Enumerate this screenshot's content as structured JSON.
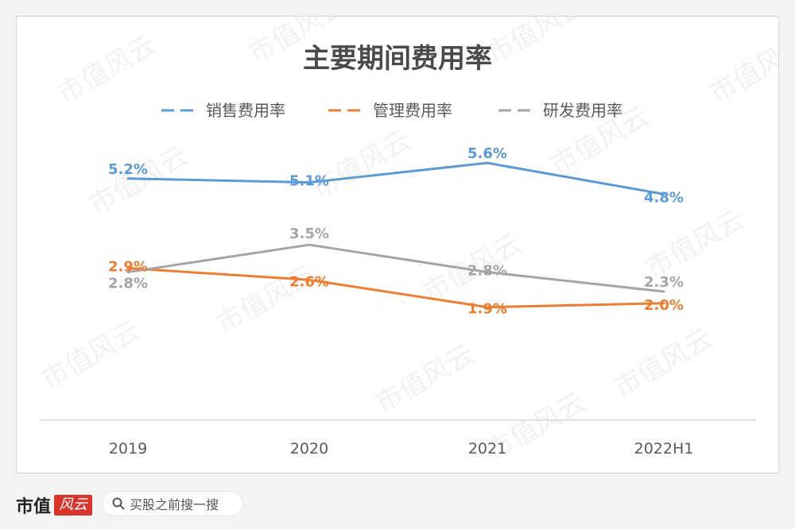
{
  "chart_data": {
    "type": "line",
    "title": "主要期间费用率",
    "categories": [
      "2019",
      "2020",
      "2021",
      "2022H1"
    ],
    "series": [
      {
        "name": "销售费用率",
        "color": "#5b9bd5",
        "values": [
          5.2,
          5.1,
          5.6,
          4.8
        ],
        "labels": [
          "5.2%",
          "5.1%",
          "5.6%",
          "4.8%"
        ]
      },
      {
        "name": "管理费用率",
        "color": "#ed7d31",
        "values": [
          2.9,
          2.6,
          1.9,
          2.0
        ],
        "labels": [
          "2.9%",
          "2.6%",
          "1.9%",
          "2.0%"
        ]
      },
      {
        "name": "研发费用率",
        "color": "#a5a5a5",
        "values": [
          2.8,
          3.5,
          2.8,
          2.3
        ],
        "labels": [
          "2.8%",
          "3.5%",
          "2.8%",
          "2.3%"
        ]
      }
    ],
    "ylim": [
      -1.0,
      6.5
    ],
    "xlabel": "",
    "ylabel": "",
    "grid": false,
    "legend": "top-center"
  },
  "watermark": {
    "text": "市值风云"
  },
  "footer": {
    "brand": "市值",
    "brand_seal": "风云",
    "search_icon": "search-icon",
    "search_text": "买股之前搜一搜"
  }
}
